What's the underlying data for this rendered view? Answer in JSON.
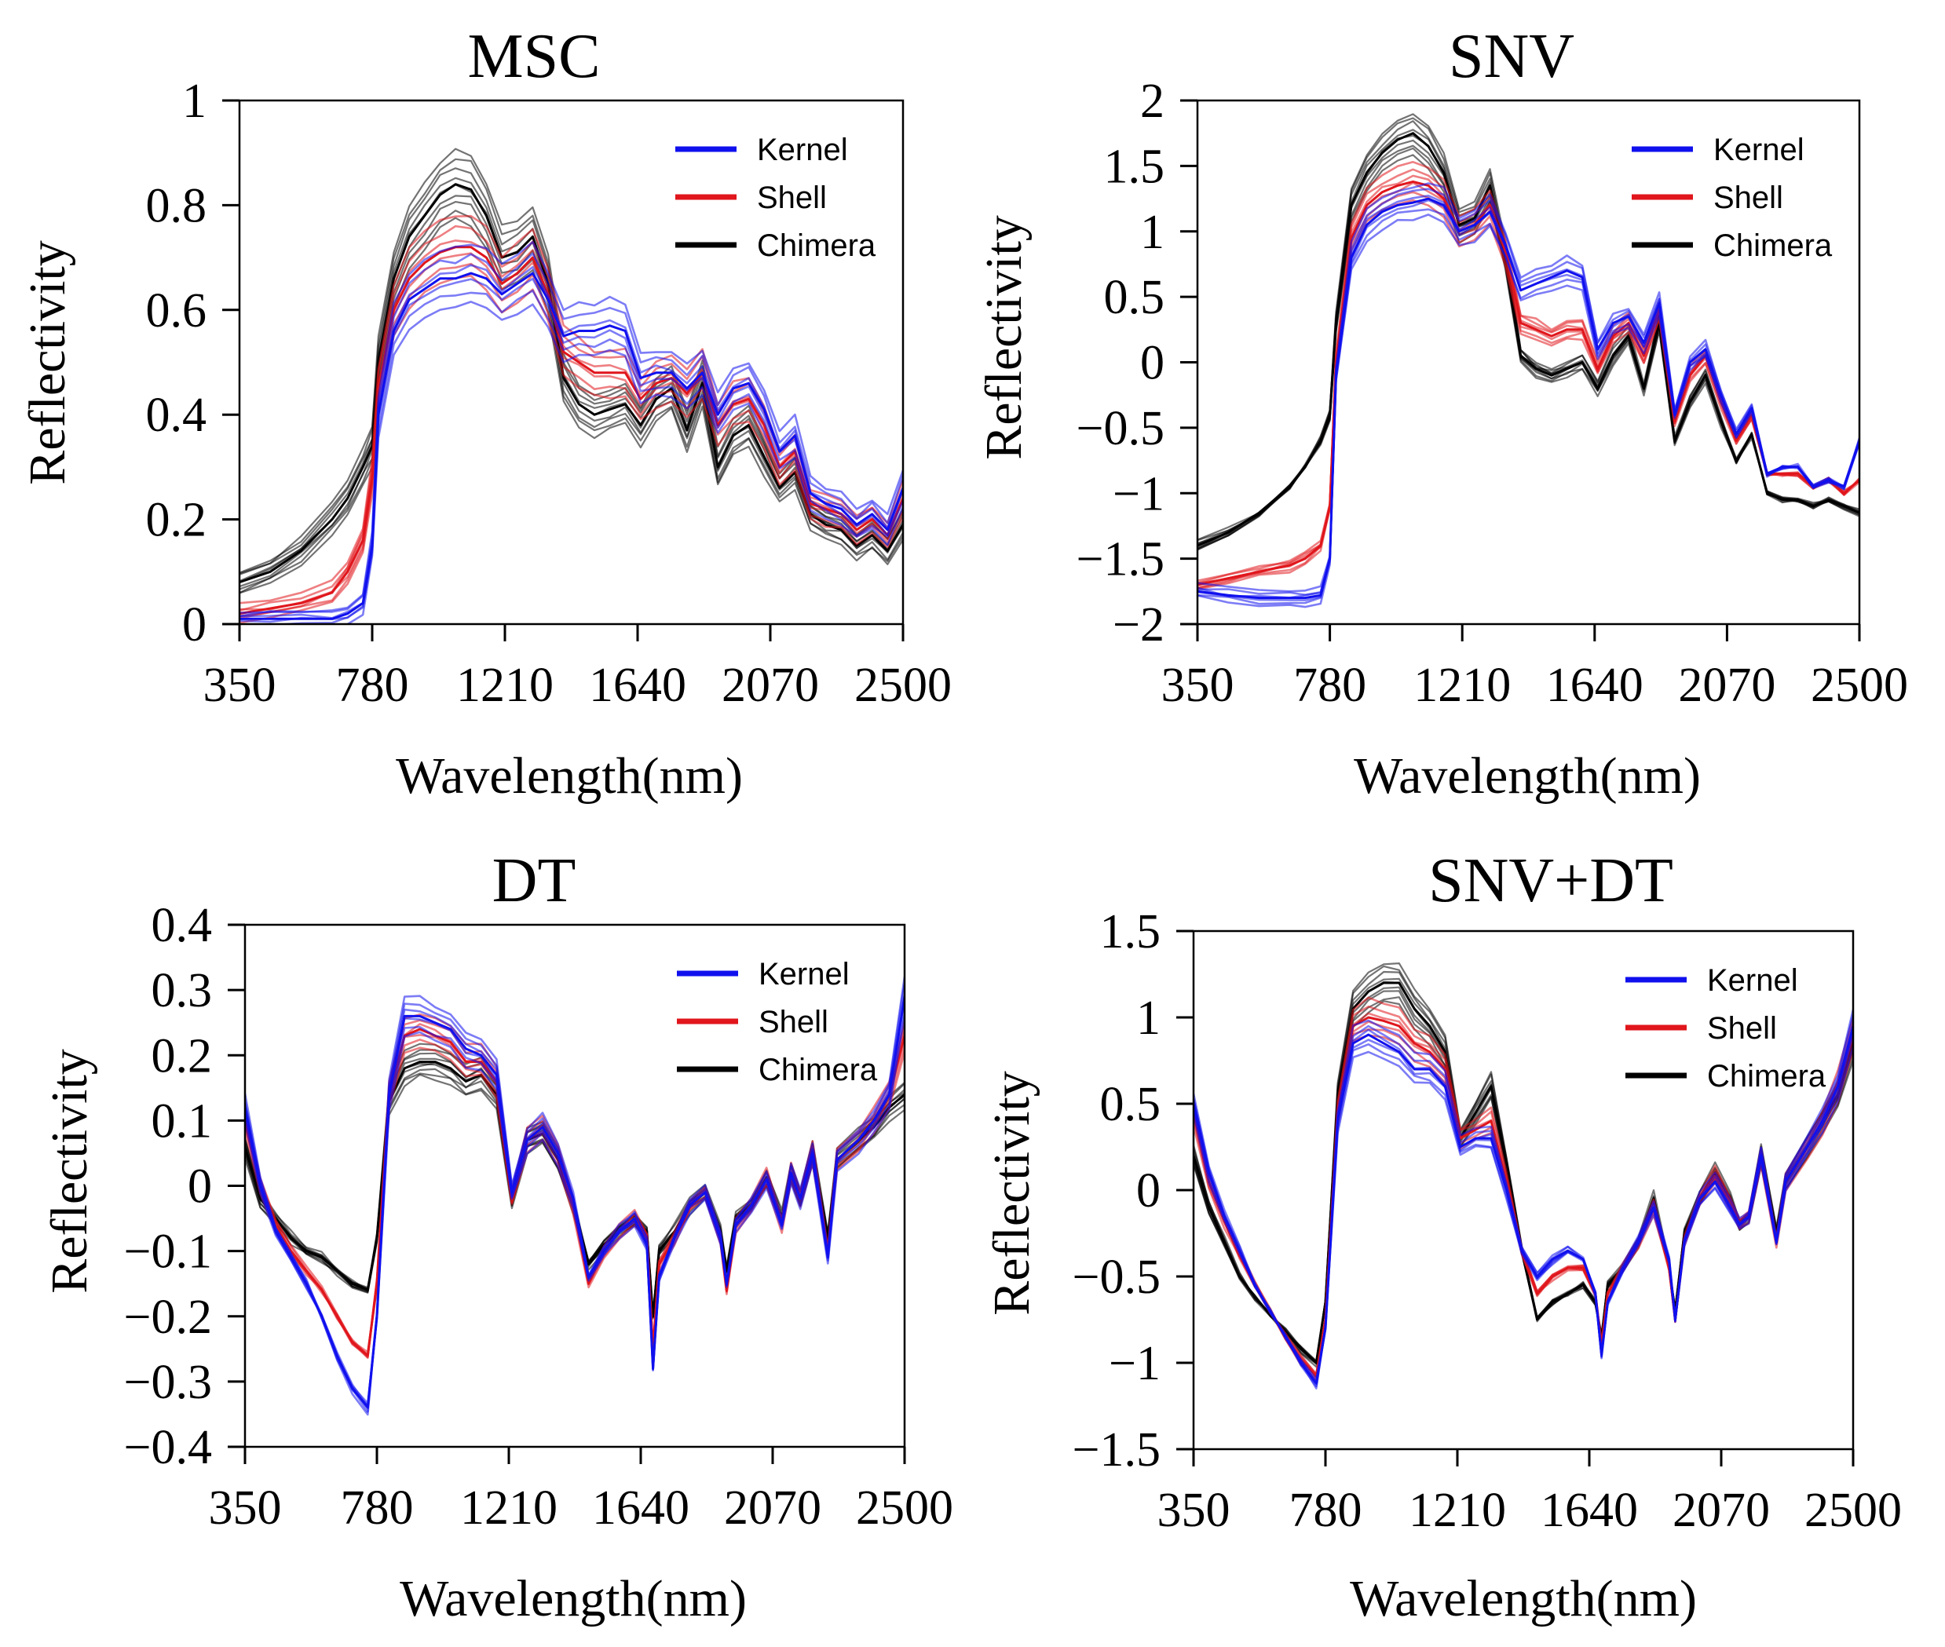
{
  "figure": {
    "legend": [
      {
        "label": "Kernel",
        "color": "#1010ee"
      },
      {
        "label": "Shell",
        "color": "#e0161c"
      },
      {
        "label": "Chimera",
        "color": "#000000"
      }
    ]
  },
  "chart_data": [
    {
      "id": "msc",
      "type": "line",
      "title": "MSC",
      "xlabel": "Wavelength(nm)",
      "ylabel": "Reflectivity",
      "xlim": [
        350,
        2500
      ],
      "ylim": [
        0,
        1
      ],
      "xticks": [
        350,
        780,
        1210,
        1640,
        2070,
        2500
      ],
      "xtick_labels": [
        "350",
        "780",
        "1210",
        "1640",
        "2070",
        "2500"
      ],
      "yticks": [
        0,
        0.2,
        0.4,
        0.6,
        0.8,
        1
      ],
      "ytick_labels": [
        "0",
        "0.2",
        "0.4",
        "0.6",
        "0.8",
        "1"
      ],
      "legend_location": "top-right",
      "x": [
        350,
        450,
        550,
        650,
        700,
        750,
        780,
        800,
        850,
        900,
        950,
        1000,
        1050,
        1100,
        1150,
        1200,
        1250,
        1300,
        1350,
        1400,
        1450,
        1500,
        1550,
        1600,
        1650,
        1700,
        1750,
        1800,
        1850,
        1900,
        1950,
        2000,
        2050,
        2100,
        2150,
        2200,
        2250,
        2300,
        2350,
        2400,
        2450,
        2500
      ],
      "series": [
        {
          "name": "Kernel",
          "color": "#1010ee",
          "values": [
            0.01,
            0.01,
            0.01,
            0.01,
            0.02,
            0.04,
            0.15,
            0.4,
            0.56,
            0.62,
            0.64,
            0.66,
            0.66,
            0.67,
            0.66,
            0.63,
            0.65,
            0.67,
            0.62,
            0.55,
            0.56,
            0.56,
            0.57,
            0.56,
            0.47,
            0.48,
            0.48,
            0.45,
            0.48,
            0.4,
            0.45,
            0.46,
            0.41,
            0.33,
            0.36,
            0.25,
            0.23,
            0.22,
            0.19,
            0.21,
            0.18,
            0.26
          ]
        },
        {
          "name": "Shell",
          "color": "#e0161c",
          "values": [
            0.02,
            0.03,
            0.04,
            0.06,
            0.1,
            0.16,
            0.28,
            0.45,
            0.6,
            0.66,
            0.69,
            0.71,
            0.72,
            0.72,
            0.7,
            0.65,
            0.67,
            0.7,
            0.63,
            0.52,
            0.5,
            0.48,
            0.48,
            0.48,
            0.43,
            0.46,
            0.47,
            0.44,
            0.48,
            0.38,
            0.42,
            0.43,
            0.38,
            0.3,
            0.33,
            0.23,
            0.22,
            0.21,
            0.18,
            0.2,
            0.17,
            0.24
          ]
        },
        {
          "name": "Chimera",
          "color": "#000000",
          "values": [
            0.08,
            0.1,
            0.14,
            0.2,
            0.24,
            0.3,
            0.34,
            0.5,
            0.66,
            0.74,
            0.78,
            0.82,
            0.84,
            0.83,
            0.78,
            0.7,
            0.71,
            0.74,
            0.65,
            0.47,
            0.42,
            0.4,
            0.41,
            0.42,
            0.38,
            0.43,
            0.45,
            0.37,
            0.46,
            0.3,
            0.36,
            0.38,
            0.32,
            0.26,
            0.29,
            0.21,
            0.19,
            0.18,
            0.15,
            0.17,
            0.14,
            0.19
          ]
        }
      ]
    },
    {
      "id": "snv",
      "type": "line",
      "title": "SNV",
      "xlabel": "Wavelength(nm)",
      "ylabel": "Reflectivity",
      "xlim": [
        350,
        2500
      ],
      "ylim": [
        -2,
        2
      ],
      "xticks": [
        350,
        780,
        1210,
        1640,
        2070,
        2500
      ],
      "xtick_labels": [
        "350",
        "780",
        "1210",
        "1640",
        "2070",
        "2500"
      ],
      "yticks": [
        -2,
        -1.5,
        -1,
        -0.5,
        0,
        0.5,
        1,
        1.5,
        2
      ],
      "ytick_labels": [
        "−2",
        "−1.5",
        "−1",
        "−0.5",
        "0",
        "0.5",
        "1",
        "1.5",
        "2"
      ],
      "legend_location": "top-right",
      "x": [
        350,
        450,
        550,
        650,
        700,
        750,
        780,
        800,
        850,
        900,
        950,
        1000,
        1050,
        1100,
        1150,
        1200,
        1250,
        1300,
        1350,
        1400,
        1450,
        1500,
        1550,
        1600,
        1650,
        1700,
        1750,
        1800,
        1850,
        1900,
        1950,
        2000,
        2050,
        2100,
        2150,
        2200,
        2250,
        2300,
        2350,
        2400,
        2450,
        2500
      ],
      "series": [
        {
          "name": "Kernel",
          "color": "#1010ee",
          "values": [
            -1.75,
            -1.78,
            -1.8,
            -1.8,
            -1.8,
            -1.78,
            -1.5,
            -0.1,
            0.8,
            1.05,
            1.15,
            1.2,
            1.22,
            1.25,
            1.2,
            1.0,
            1.05,
            1.15,
            0.9,
            0.55,
            0.6,
            0.65,
            0.7,
            0.65,
            0.1,
            0.3,
            0.35,
            0.15,
            0.45,
            -0.4,
            0.0,
            0.1,
            -0.25,
            -0.55,
            -0.35,
            -0.85,
            -0.8,
            -0.8,
            -0.95,
            -0.9,
            -0.95,
            -0.6
          ]
        },
        {
          "name": "Shell",
          "color": "#e0161c",
          "values": [
            -1.7,
            -1.65,
            -1.6,
            -1.55,
            -1.5,
            -1.4,
            -1.1,
            0.0,
            0.95,
            1.2,
            1.3,
            1.35,
            1.38,
            1.35,
            1.25,
            1.0,
            1.05,
            1.2,
            0.85,
            0.3,
            0.25,
            0.2,
            0.25,
            0.25,
            -0.05,
            0.2,
            0.3,
            0.05,
            0.4,
            -0.45,
            -0.1,
            0.05,
            -0.3,
            -0.6,
            -0.4,
            -0.85,
            -0.85,
            -0.85,
            -0.95,
            -0.9,
            -1.0,
            -0.9
          ]
        },
        {
          "name": "Chimera",
          "color": "#000000",
          "values": [
            -1.4,
            -1.3,
            -1.15,
            -0.95,
            -0.8,
            -0.6,
            -0.4,
            0.3,
            1.2,
            1.45,
            1.6,
            1.7,
            1.75,
            1.65,
            1.45,
            1.05,
            1.1,
            1.35,
            0.8,
            0.05,
            -0.05,
            -0.1,
            -0.05,
            0.0,
            -0.2,
            0.05,
            0.2,
            -0.2,
            0.3,
            -0.6,
            -0.3,
            -0.1,
            -0.45,
            -0.75,
            -0.55,
            -1.0,
            -1.05,
            -1.05,
            -1.1,
            -1.05,
            -1.1,
            -1.15
          ]
        }
      ]
    },
    {
      "id": "dt",
      "type": "line",
      "title": "DT",
      "xlabel": "Wavelength(nm)",
      "ylabel": "Reflectivity",
      "xlim": [
        350,
        2500
      ],
      "ylim": [
        -0.4,
        0.4
      ],
      "xticks": [
        350,
        780,
        1210,
        1640,
        2070,
        2500
      ],
      "xtick_labels": [
        "350",
        "780",
        "1210",
        "1640",
        "2070",
        "2500"
      ],
      "yticks": [
        -0.4,
        -0.3,
        -0.2,
        -0.1,
        0,
        0.1,
        0.2,
        0.3,
        0.4
      ],
      "ytick_labels": [
        "−0.4",
        "−0.3",
        "−0.2",
        "−0.1",
        "0",
        "0.1",
        "0.2",
        "0.3",
        "0.4"
      ],
      "legend_location": "top-right",
      "x": [
        350,
        400,
        450,
        500,
        550,
        600,
        650,
        700,
        750,
        780,
        820,
        870,
        920,
        970,
        1020,
        1070,
        1120,
        1170,
        1220,
        1270,
        1320,
        1370,
        1420,
        1470,
        1520,
        1570,
        1620,
        1660,
        1680,
        1700,
        1750,
        1800,
        1850,
        1900,
        1920,
        1950,
        2000,
        2050,
        2100,
        2130,
        2160,
        2200,
        2250,
        2280,
        2350,
        2400,
        2450,
        2500
      ],
      "series": [
        {
          "name": "Kernel",
          "color": "#1010ee",
          "values": [
            0.12,
            0.0,
            -0.07,
            -0.11,
            -0.15,
            -0.2,
            -0.26,
            -0.31,
            -0.34,
            -0.2,
            0.14,
            0.26,
            0.26,
            0.25,
            0.24,
            0.21,
            0.2,
            0.17,
            -0.01,
            0.07,
            0.09,
            0.05,
            -0.02,
            -0.14,
            -0.1,
            -0.07,
            -0.05,
            -0.09,
            -0.28,
            -0.14,
            -0.08,
            -0.03,
            -0.01,
            -0.08,
            -0.15,
            -0.06,
            -0.03,
            0.01,
            -0.06,
            0.02,
            -0.02,
            0.05,
            -0.11,
            0.04,
            0.07,
            0.1,
            0.14,
            0.29
          ]
        },
        {
          "name": "Shell",
          "color": "#e0161c",
          "values": [
            0.1,
            0.0,
            -0.06,
            -0.1,
            -0.13,
            -0.16,
            -0.2,
            -0.24,
            -0.26,
            -0.15,
            0.14,
            0.23,
            0.24,
            0.23,
            0.22,
            0.19,
            0.19,
            0.16,
            -0.02,
            0.07,
            0.09,
            0.05,
            -0.03,
            -0.15,
            -0.1,
            -0.07,
            -0.05,
            -0.08,
            -0.25,
            -0.12,
            -0.08,
            -0.03,
            -0.01,
            -0.08,
            -0.16,
            -0.06,
            -0.03,
            0.01,
            -0.06,
            0.02,
            -0.02,
            0.05,
            -0.1,
            0.04,
            0.07,
            0.1,
            0.14,
            0.23
          ]
        },
        {
          "name": "Chimera",
          "color": "#000000",
          "values": [
            0.06,
            -0.02,
            -0.05,
            -0.08,
            -0.1,
            -0.11,
            -0.13,
            -0.15,
            -0.16,
            -0.08,
            0.13,
            0.18,
            0.19,
            0.19,
            0.18,
            0.16,
            0.17,
            0.14,
            -0.02,
            0.07,
            0.08,
            0.04,
            -0.03,
            -0.12,
            -0.09,
            -0.07,
            -0.05,
            -0.07,
            -0.2,
            -0.1,
            -0.07,
            -0.03,
            -0.01,
            -0.07,
            -0.13,
            -0.05,
            -0.03,
            0.01,
            -0.05,
            0.02,
            -0.02,
            0.05,
            -0.08,
            0.04,
            0.07,
            0.09,
            0.12,
            0.14
          ]
        }
      ]
    },
    {
      "id": "snv-dt",
      "type": "line",
      "title": "SNV+DT",
      "xlabel": "Wavelength(nm)",
      "ylabel": "Reflectivity",
      "xlim": [
        350,
        2500
      ],
      "ylim": [
        -1.5,
        1.5
      ],
      "xticks": [
        350,
        780,
        1210,
        1640,
        2070,
        2500
      ],
      "xtick_labels": [
        "350",
        "780",
        "1210",
        "1640",
        "2070",
        "2500"
      ],
      "yticks": [
        -1.5,
        -1,
        -0.5,
        0,
        0.5,
        1,
        1.5
      ],
      "ytick_labels": [
        "−1.5",
        "−1",
        "−0.5",
        "0",
        "0.5",
        "1",
        "1.5"
      ],
      "legend_location": "top-right",
      "x": [
        350,
        400,
        450,
        500,
        550,
        600,
        650,
        700,
        750,
        780,
        820,
        870,
        920,
        970,
        1020,
        1070,
        1120,
        1170,
        1220,
        1270,
        1320,
        1370,
        1420,
        1470,
        1520,
        1570,
        1620,
        1660,
        1680,
        1700,
        1750,
        1800,
        1850,
        1900,
        1920,
        1950,
        2000,
        2050,
        2100,
        2130,
        2160,
        2200,
        2250,
        2280,
        2350,
        2400,
        2450,
        2500
      ],
      "series": [
        {
          "name": "Kernel",
          "color": "#1010ee",
          "values": [
            0.5,
            0.1,
            -0.15,
            -0.35,
            -0.55,
            -0.7,
            -0.85,
            -1.0,
            -1.12,
            -0.8,
            0.4,
            0.85,
            0.9,
            0.85,
            0.8,
            0.7,
            0.7,
            0.6,
            0.25,
            0.3,
            0.3,
            0.0,
            -0.35,
            -0.5,
            -0.4,
            -0.35,
            -0.4,
            -0.6,
            -0.95,
            -0.65,
            -0.45,
            -0.3,
            -0.1,
            -0.4,
            -0.75,
            -0.3,
            -0.05,
            0.05,
            -0.1,
            -0.2,
            -0.15,
            0.2,
            -0.3,
            0.05,
            0.25,
            0.4,
            0.6,
            0.95
          ]
        },
        {
          "name": "Shell",
          "color": "#e0161c",
          "values": [
            0.45,
            0.05,
            -0.18,
            -0.38,
            -0.55,
            -0.7,
            -0.85,
            -0.98,
            -1.08,
            -0.75,
            0.45,
            0.95,
            1.0,
            0.98,
            0.95,
            0.85,
            0.8,
            0.7,
            0.3,
            0.35,
            0.4,
            0.05,
            -0.35,
            -0.6,
            -0.5,
            -0.45,
            -0.45,
            -0.6,
            -0.9,
            -0.6,
            -0.45,
            -0.3,
            -0.1,
            -0.45,
            -0.75,
            -0.3,
            -0.05,
            0.08,
            -0.08,
            -0.2,
            -0.15,
            0.2,
            -0.3,
            0.05,
            0.25,
            0.4,
            0.6,
            0.9
          ]
        },
        {
          "name": "Chimera",
          "color": "#000000",
          "values": [
            0.2,
            -0.1,
            -0.3,
            -0.5,
            -0.62,
            -0.72,
            -0.82,
            -0.92,
            -1.0,
            -0.65,
            0.55,
            1.05,
            1.15,
            1.2,
            1.2,
            1.05,
            0.95,
            0.8,
            0.3,
            0.45,
            0.6,
            0.15,
            -0.35,
            -0.75,
            -0.65,
            -0.6,
            -0.55,
            -0.65,
            -0.85,
            -0.55,
            -0.45,
            -0.3,
            -0.05,
            -0.45,
            -0.7,
            -0.25,
            -0.05,
            0.1,
            -0.05,
            -0.2,
            -0.15,
            0.2,
            -0.25,
            0.05,
            0.25,
            0.4,
            0.55,
            0.85
          ]
        }
      ]
    }
  ]
}
